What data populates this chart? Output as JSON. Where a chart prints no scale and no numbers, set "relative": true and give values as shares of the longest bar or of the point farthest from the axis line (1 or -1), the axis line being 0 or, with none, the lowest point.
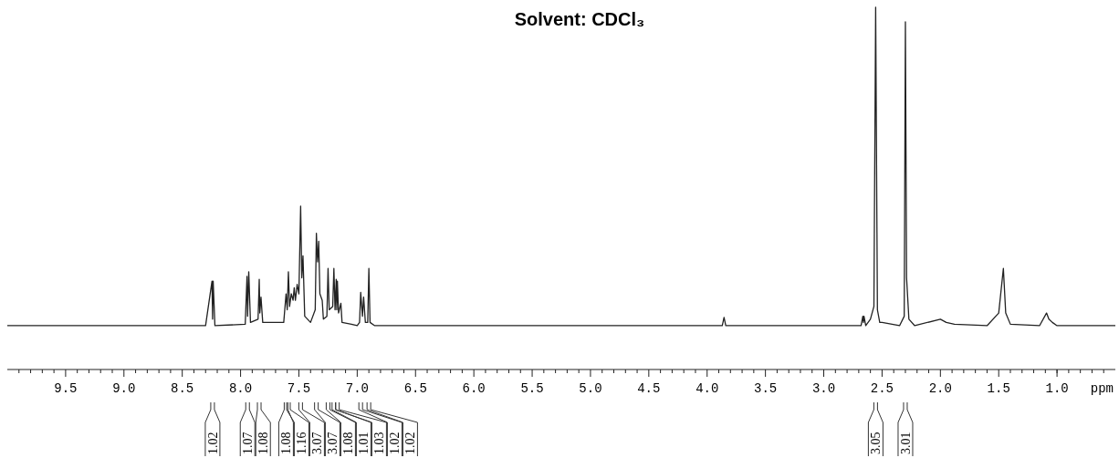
{
  "chart_data": {
    "type": "line",
    "title": "Solvent: CDCl₃",
    "xlabel": "ppm",
    "relative": true,
    "color": "#222222",
    "xlim": [
      10.0,
      0.5
    ],
    "xticks": [
      9.5,
      {
        "value": 9.0,
        "label": "9.0"
      },
      8.5,
      {
        "value": 8.0,
        "label": "8.0"
      },
      7.5,
      {
        "value": 7.0,
        "label": "7.0"
      },
      6.5,
      {
        "value": 6.0,
        "label": "6.0"
      },
      5.5,
      {
        "value": 5.0,
        "label": "5.0"
      },
      4.5,
      {
        "value": 4.0,
        "label": "4.0"
      },
      3.5,
      {
        "value": 3.0,
        "label": "3.0"
      },
      2.5,
      {
        "value": 2.0,
        "label": "2.0"
      },
      1.5,
      {
        "value": 1.0,
        "label": "1.0"
      }
    ],
    "x": [
      10.0,
      8.3,
      8.245,
      8.24,
      8.235,
      8.22,
      7.96,
      7.945,
      7.94,
      7.93,
      7.915,
      7.85,
      7.84,
      7.835,
      7.825,
      7.81,
      7.63,
      7.61,
      7.6,
      7.59,
      7.58,
      7.565,
      7.55,
      7.54,
      7.53,
      7.515,
      7.5,
      7.485,
      7.475,
      7.465,
      7.45,
      7.4,
      7.36,
      7.35,
      7.34,
      7.33,
      7.32,
      7.3,
      7.29,
      7.26,
      7.25,
      7.24,
      7.21,
      7.2,
      7.19,
      7.18,
      7.175,
      7.17,
      7.16,
      7.14,
      7.13,
      7.05,
      7.0,
      6.98,
      6.97,
      6.955,
      6.945,
      6.93,
      6.91,
      6.9,
      6.89,
      6.85,
      4.0,
      3.87,
      3.855,
      3.84,
      2.68,
      2.665,
      2.66,
      2.655,
      2.64,
      2.6,
      2.57,
      2.555,
      2.54,
      2.52,
      2.5,
      2.35,
      2.31,
      2.3,
      2.29,
      2.27,
      2.22,
      2.0,
      1.95,
      1.88,
      1.6,
      1.5,
      1.46,
      1.44,
      1.4,
      1.15,
      1.09,
      1.07,
      1.04,
      1.0,
      0.5
    ],
    "values": [
      0.121,
      0.121,
      0.244,
      0.139,
      0.244,
      0.121,
      0.125,
      0.257,
      0.147,
      0.27,
      0.13,
      0.139,
      0.249,
      0.156,
      0.2,
      0.13,
      0.13,
      0.209,
      0.165,
      0.27,
      0.174,
      0.209,
      0.191,
      0.226,
      0.191,
      0.235,
      0.209,
      0.451,
      0.253,
      0.314,
      0.147,
      0.13,
      0.165,
      0.376,
      0.297,
      0.354,
      0.209,
      0.191,
      0.139,
      0.147,
      0.279,
      0.165,
      0.174,
      0.279,
      0.165,
      0.249,
      0.165,
      0.244,
      0.156,
      0.183,
      0.13,
      0.125,
      0.121,
      0.13,
      0.213,
      0.147,
      0.2,
      0.13,
      0.13,
      0.279,
      0.13,
      0.121,
      0.121,
      0.121,
      0.144,
      0.121,
      0.121,
      0.147,
      0.13,
      0.147,
      0.121,
      0.139,
      0.174,
      1.0,
      0.165,
      0.13,
      0.13,
      0.121,
      0.147,
      0.96,
      0.253,
      0.139,
      0.121,
      0.139,
      0.13,
      0.125,
      0.121,
      0.156,
      0.279,
      0.156,
      0.125,
      0.121,
      0.156,
      0.139,
      0.13,
      0.121,
      0.121
    ],
    "annotations": [
      {
        "text": "1.02",
        "x": 8.24
      },
      {
        "text": "1.07",
        "x": 7.94
      },
      {
        "text": "1.08",
        "x": 7.84
      },
      {
        "text": "1.08",
        "x": 7.61
      },
      {
        "text": "1.16",
        "x": 7.59
      },
      {
        "text": "3.07",
        "x": 7.485
      },
      {
        "text": "3.07",
        "x": 7.35
      },
      {
        "text": "1.08",
        "x": 7.25
      },
      {
        "text": "1.01",
        "x": 7.2
      },
      {
        "text": "1.03",
        "x": 7.17
      },
      {
        "text": "1.02",
        "x": 6.97
      },
      {
        "text": "1.02",
        "x": 6.9
      },
      {
        "text": "3.05",
        "x": 2.555
      },
      {
        "text": "3.01",
        "x": 2.3
      }
    ]
  }
}
